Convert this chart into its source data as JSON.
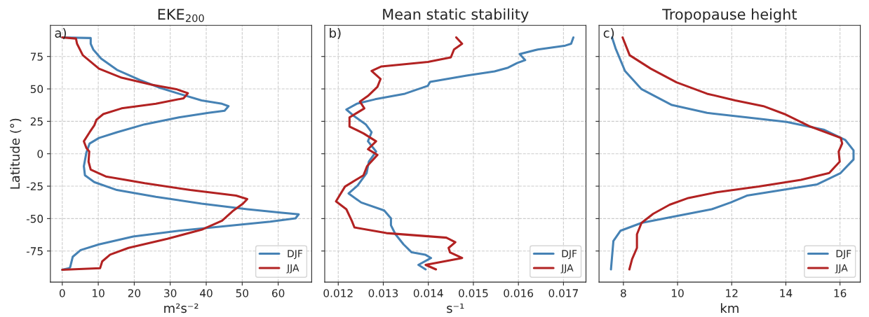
{
  "chart_data": [
    {
      "type": "line",
      "title": "EKE$_{200}$",
      "xlabel": "m²s⁻²",
      "ylabel": "Latitude (°)",
      "annotations": [
        "a)"
      ],
      "xlim": [
        -3.3,
        69.3
      ],
      "xticks": [
        0,
        10,
        20,
        30,
        40,
        50,
        60
      ],
      "ylim": [
        -99,
        99
      ],
      "yticks": [
        -75,
        -50,
        -25,
        0,
        25,
        50,
        75
      ],
      "grid": true,
      "legend": "bottom right",
      "line_style": "solid",
      "series": [
        {
          "name": "DJF",
          "color": "#4682b4",
          "x": [
            0,
            7.9,
            7.9,
            8.6,
            10.8,
            15.2,
            21.6,
            27.3,
            32.4,
            38.7,
            44.4,
            46.2,
            45.1,
            40.6,
            32.4,
            22.9,
            15.2,
            10.2,
            7.6,
            6.7,
            6.0,
            6.3,
            8.9,
            15.2,
            26.0,
            38.7,
            51.4,
            61.0,
            65.7,
            64.8,
            57.8,
            45.1,
            32.4,
            19.7,
            10.2,
            5.1,
            2.9,
            2.2,
            1.9,
            0
          ],
          "values": [
            89.7,
            89.2,
            84.8,
            80.4,
            73.4,
            64.7,
            56.8,
            50.7,
            46.3,
            41.1,
            38.5,
            36.7,
            33.2,
            31.5,
            28.0,
            22.7,
            16.6,
            12.2,
            7.9,
            0.9,
            -9.6,
            -16.6,
            -21.9,
            -28.0,
            -33.2,
            -38.5,
            -42.8,
            -45.5,
            -46.7,
            -49.8,
            -52.4,
            -55.9,
            -59.4,
            -63.8,
            -69.9,
            -74.3,
            -79.5,
            -87.4,
            -88.3,
            -89.5
          ]
        },
        {
          "name": "JJA",
          "color": "#b22222",
          "x": [
            0,
            3.8,
            4.1,
            5.7,
            10.2,
            16.5,
            24.8,
            31.7,
            34.9,
            33.7,
            26.0,
            16.5,
            11.4,
            9.5,
            8.9,
            7.6,
            6.0,
            6.7,
            7.5,
            7.3,
            7.9,
            12.1,
            22.9,
            35.6,
            48.3,
            51.4,
            50.2,
            47.6,
            44.4,
            38.7,
            29.2,
            18.4,
            13.3,
            11.1,
            10.5,
            0
          ],
          "values": [
            89.7,
            88.8,
            84.8,
            76.0,
            65.6,
            58.6,
            53.3,
            49.8,
            46.7,
            42.8,
            38.5,
            35.0,
            30.6,
            26.2,
            21.9,
            16.6,
            9.6,
            4.4,
            1.7,
            -6.1,
            -12.2,
            -17.5,
            -22.7,
            -28.0,
            -32.3,
            -35.0,
            -38.5,
            -43.7,
            -51.6,
            -58.6,
            -65.6,
            -72.6,
            -77.8,
            -83.0,
            -88.3,
            -89.5
          ]
        }
      ]
    },
    {
      "type": "line",
      "title": "Mean static stability",
      "xlabel": "s⁻¹",
      "annotations": [
        "b)"
      ],
      "xlim": [
        0.0117,
        0.0175
      ],
      "xticks": [
        0.012,
        0.013,
        0.014,
        0.015,
        0.016,
        0.017
      ],
      "ylim": [
        -99,
        99
      ],
      "yticks": [
        -75,
        -50,
        -25,
        0,
        25,
        50,
        75
      ],
      "tick_labels": "x",
      "grid": true,
      "legend": "bottom right",
      "line_style": "solid",
      "series": [
        {
          "name": "DJF",
          "color": "#4682b4",
          "x": [
            0.01722,
            0.01717,
            0.01704,
            0.01643,
            0.01603,
            0.01615,
            0.01597,
            0.01577,
            0.01547,
            0.01485,
            0.01404,
            0.01399,
            0.01348,
            0.01282,
            0.01241,
            0.01218,
            0.01236,
            0.01261,
            0.01274,
            0.01266,
            0.01284,
            0.01268,
            0.01263,
            0.01243,
            0.01223,
            0.01251,
            0.01302,
            0.01317,
            0.01317,
            0.01327,
            0.01345,
            0.01363,
            0.01393,
            0.01406,
            0.01378,
            0.01394
          ],
          "values": [
            89.7,
            84.8,
            83.4,
            80.4,
            76.9,
            72.2,
            69.9,
            66.4,
            63.5,
            60.3,
            55.4,
            52.4,
            46.3,
            42.0,
            38.5,
            34.1,
            28.8,
            22.7,
            16.6,
            9.6,
            1.7,
            -6.1,
            -14.9,
            -24.5,
            -30.6,
            -37.6,
            -43.7,
            -49.8,
            -55.1,
            -62.1,
            -69.9,
            -76.0,
            -77.8,
            -80.4,
            -85.7,
            -89.2
          ]
        },
        {
          "name": "JJA",
          "color": "#b22222",
          "x": [
            0.01462,
            0.01475,
            0.01457,
            0.0145,
            0.01399,
            0.01296,
            0.01274,
            0.01294,
            0.01287,
            0.01266,
            0.01248,
            0.01258,
            0.01225,
            0.01225,
            0.01256,
            0.01284,
            0.01266,
            0.01287,
            0.01264,
            0.01256,
            0.01215,
            0.01195,
            0.01218,
            0.0123,
            0.01236,
            0.01307,
            0.0144,
            0.0146,
            0.01445,
            0.01448,
            0.01475,
            0.01394,
            0.01417
          ],
          "values": [
            89.7,
            84.8,
            80.4,
            74.3,
            70.8,
            67.3,
            63.8,
            57.7,
            51.6,
            44.6,
            40.2,
            35.0,
            28.0,
            21.0,
            15.7,
            9.6,
            3.5,
            -0.9,
            -9.6,
            -16.6,
            -25.3,
            -36.7,
            -42.8,
            -51.6,
            -56.8,
            -61.2,
            -64.7,
            -68.2,
            -72.6,
            -76.0,
            -80.4,
            -85.7,
            -89.2
          ]
        }
      ]
    },
    {
      "type": "line",
      "title": "Tropopause height",
      "xlabel": "km",
      "annotations": [
        "c)"
      ],
      "xlim": [
        7.1,
        16.75
      ],
      "xticks": [
        8,
        10,
        12,
        14,
        16
      ],
      "ylim": [
        -99,
        99
      ],
      "yticks": [
        -75,
        -50,
        -25,
        0,
        25,
        50,
        75
      ],
      "tick_labels": "x",
      "grid": true,
      "legend": "bottom right",
      "line_style": "solid",
      "series": [
        {
          "name": "DJF",
          "color": "#4682b4",
          "x": [
            7.58,
            7.71,
            8.06,
            8.67,
            9.79,
            11.09,
            12.56,
            14.03,
            15.42,
            16.2,
            16.5,
            16.5,
            16.02,
            15.16,
            13.86,
            12.56,
            11.96,
            11.26,
            9.96,
            8.67,
            7.89,
            7.63,
            7.54
          ],
          "values": [
            89.7,
            81.3,
            63.8,
            49.8,
            37.6,
            31.5,
            28.0,
            24.5,
            18.4,
            10.5,
            2.6,
            -4.4,
            -14.9,
            -23.6,
            -28.0,
            -32.3,
            -37.6,
            -42.8,
            -48.1,
            -53.3,
            -59.4,
            -67.3,
            -89.2
          ]
        },
        {
          "name": "JJA",
          "color": "#b22222",
          "x": [
            7.97,
            8.23,
            9.01,
            9.96,
            11.09,
            12.13,
            13.17,
            13.95,
            14.9,
            16.03,
            16.08,
            15.95,
            15.99,
            15.6,
            14.56,
            13.0,
            11.44,
            10.4,
            9.71,
            9.1,
            8.67,
            8.5,
            8.5,
            8.32,
            8.22
          ],
          "values": [
            89.7,
            76.0,
            65.6,
            55.1,
            46.3,
            41.1,
            36.7,
            30.6,
            21.0,
            12.2,
            7.9,
            1.7,
            -6.1,
            -14.9,
            -20.1,
            -25.3,
            -29.7,
            -34.1,
            -39.3,
            -46.3,
            -53.3,
            -62.1,
            -72.6,
            -81.3,
            -89.2
          ]
        }
      ]
    }
  ]
}
